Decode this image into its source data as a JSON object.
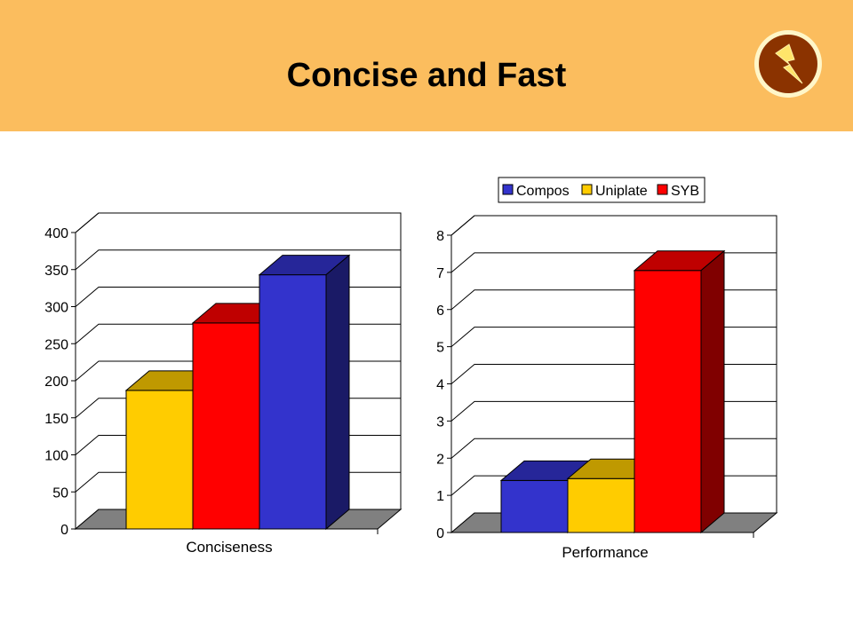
{
  "slide": {
    "title": "Concise and Fast",
    "logo_icon": "lightning-bolt-icon",
    "header_color": "#fbbd5e"
  },
  "chart_data": [
    {
      "type": "bar",
      "categories": [
        "Conciseness"
      ],
      "series": [
        {
          "name": "Uniplate",
          "values": [
            187
          ]
        },
        {
          "name": "SYB",
          "values": [
            278
          ]
        },
        {
          "name": "Compos",
          "values": [
            343
          ]
        }
      ],
      "xlabel": "Conciseness",
      "ylim": [
        0,
        400
      ],
      "yticks": [
        "0",
        "50",
        "100",
        "150",
        "200",
        "250",
        "300",
        "350",
        "400"
      ],
      "grid": true,
      "legend": "none",
      "style": "3d-column"
    },
    {
      "type": "bar",
      "categories": [
        "Performance"
      ],
      "series": [
        {
          "name": "Compos",
          "values": [
            1.4
          ]
        },
        {
          "name": "Uniplate",
          "values": [
            1.45
          ]
        },
        {
          "name": "SYB",
          "values": [
            7.05
          ]
        }
      ],
      "xlabel": "Performance",
      "ylim": [
        0,
        8
      ],
      "yticks": [
        "0",
        "1",
        "2",
        "3",
        "4",
        "5",
        "6",
        "7",
        "8"
      ],
      "grid": true,
      "legend": "top",
      "style": "3d-column"
    }
  ],
  "legend": {
    "items": [
      {
        "label": "Compos",
        "color": "#3333cc"
      },
      {
        "label": "Uniplate",
        "color": "#ffcc00"
      },
      {
        "label": "SYB",
        "color": "#ff0000"
      }
    ]
  },
  "colors": {
    "Compos": "#3333cc",
    "Uniplate": "#ffcc00",
    "SYB": "#ff0000"
  }
}
